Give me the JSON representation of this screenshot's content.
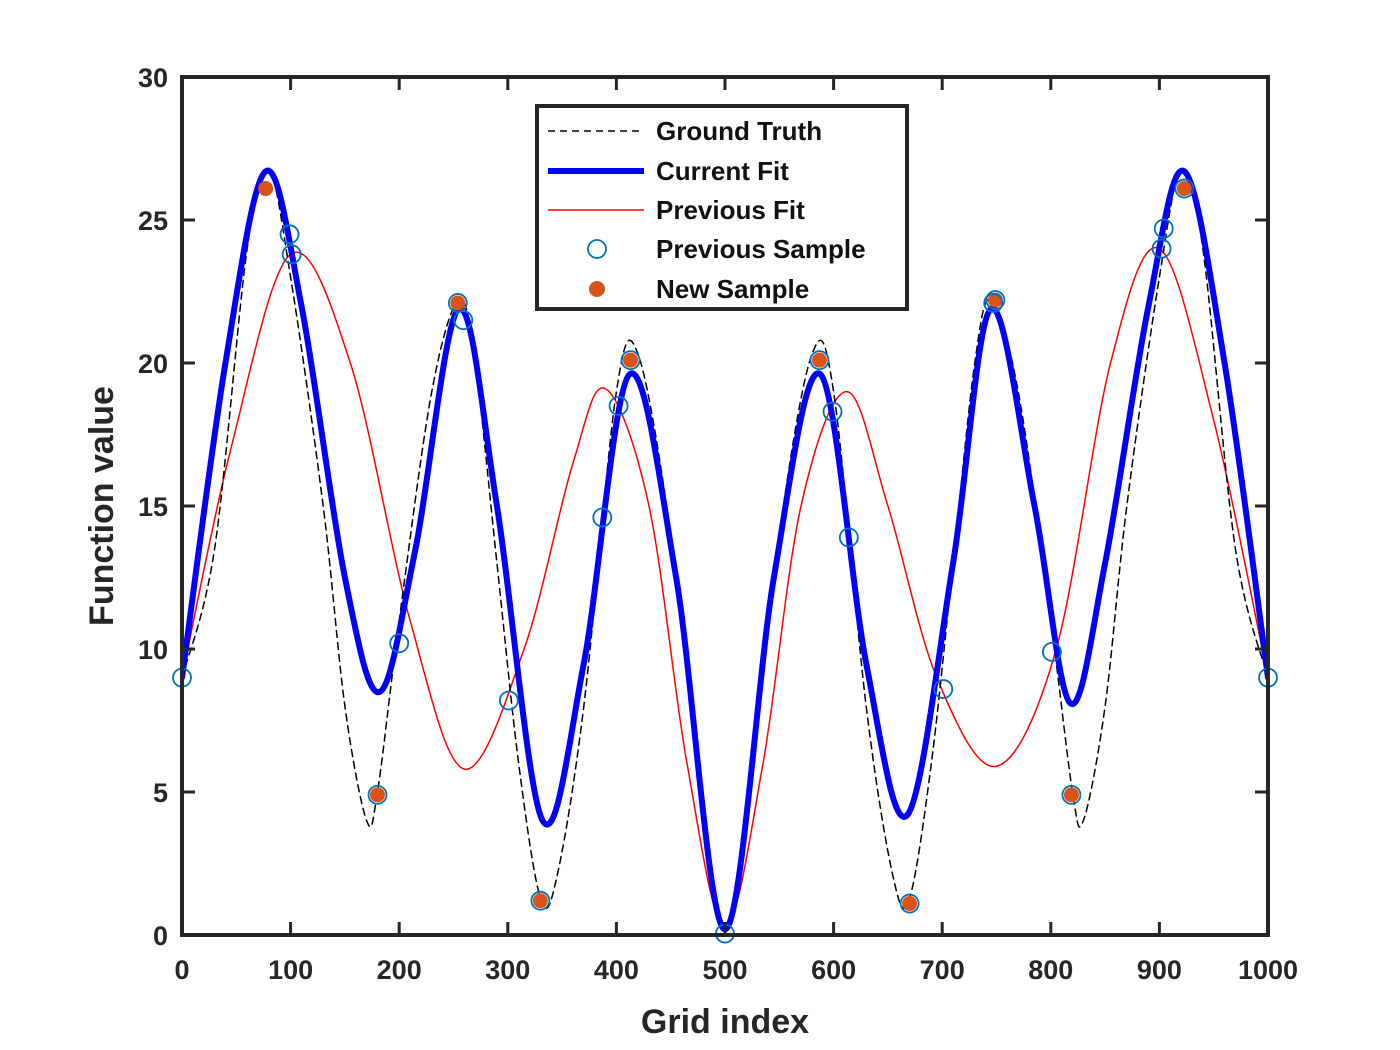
{
  "chart_data": {
    "type": "line",
    "title": "",
    "xlabel": "Grid index",
    "ylabel": "Function value",
    "xlim": [
      0,
      1000
    ],
    "ylim": [
      0,
      30
    ],
    "xticks": [
      0,
      100,
      200,
      300,
      400,
      500,
      600,
      700,
      800,
      900,
      1000
    ],
    "yticks": [
      0,
      5,
      10,
      15,
      20,
      25,
      30
    ],
    "xtick_labels": [
      "0",
      "100",
      "200",
      "300",
      "400",
      "500",
      "600",
      "700",
      "800",
      "900",
      "1000"
    ],
    "ytick_labels": [
      "0",
      "5",
      "10",
      "15",
      "20",
      "25",
      "30"
    ],
    "grid": false,
    "legend_position": "top-center",
    "series": [
      {
        "name": "Ground Truth",
        "style": "dashed",
        "color": "#000000",
        "x": [
          0,
          30,
          60,
          80,
          100,
          130,
          150,
          170,
          180,
          200,
          230,
          255,
          270,
          290,
          310,
          330,
          345,
          370,
          400,
          420,
          450,
          480,
          500,
          520,
          550,
          580,
          600,
          630,
          655,
          670,
          690,
          710,
          730,
          745,
          770,
          800,
          820,
          830,
          850,
          870,
          900,
          920,
          940,
          970,
          1000
        ],
        "y": [
          9,
          13.5,
          24,
          26.7,
          23,
          15,
          8,
          4,
          5,
          11,
          19,
          22.2,
          20,
          13,
          6,
          1.3,
          2,
          8,
          19,
          20.3,
          14,
          4,
          0.2,
          4,
          14,
          20.3,
          19,
          8,
          2,
          1.3,
          6,
          13,
          20,
          22.2,
          19,
          11,
          5,
          4,
          8,
          15,
          23,
          26.7,
          24,
          13.5,
          9
        ]
      },
      {
        "name": "Current Fit",
        "style": "solid-thick",
        "color": "#0000ff",
        "x": [
          0,
          40,
          77,
          110,
          150,
          182,
          215,
          255,
          290,
          332,
          370,
          412,
          455,
          500,
          545,
          588,
          630,
          668,
          710,
          745,
          785,
          818,
          850,
          890,
          923,
          960,
          1000
        ],
        "y": [
          9,
          20,
          26.7,
          22,
          12.5,
          8.5,
          13.5,
          21.9,
          15,
          4,
          9.5,
          19.6,
          12.5,
          0.2,
          12.5,
          19.6,
          9.5,
          4.2,
          13,
          21.9,
          15,
          8.1,
          13,
          22,
          26.7,
          20,
          9
        ]
      },
      {
        "name": "Previous Fit",
        "style": "solid-thin",
        "color": "#ff0000",
        "x": [
          0,
          45,
          100,
          155,
          210,
          260,
          315,
          360,
          390,
          430,
          465,
          500,
          535,
          570,
          612,
          650,
          695,
          750,
          805,
          855,
          900,
          950,
          1000
        ],
        "y": [
          9,
          17,
          23.8,
          20,
          11,
          5.8,
          10,
          16.5,
          19.1,
          15,
          6,
          0.3,
          6,
          15,
          19,
          15,
          9,
          5.9,
          10,
          20,
          24,
          18,
          9
        ]
      }
    ],
    "scatter_series": [
      {
        "name": "Previous Sample",
        "marker": "open-circle",
        "color": "#0072bd",
        "points": [
          [
            0,
            9
          ],
          [
            99,
            24.5
          ],
          [
            101,
            23.8
          ],
          [
            180,
            4.9
          ],
          [
            200,
            10.2
          ],
          [
            254,
            22.1
          ],
          [
            259,
            21.5
          ],
          [
            301,
            8.2
          ],
          [
            330,
            1.2
          ],
          [
            387,
            14.6
          ],
          [
            402,
            18.5
          ],
          [
            413,
            20.1
          ],
          [
            500,
            0.05
          ],
          [
            587,
            20.1
          ],
          [
            599,
            18.3
          ],
          [
            614,
            13.9
          ],
          [
            670,
            1.1
          ],
          [
            701,
            8.6
          ],
          [
            747,
            22.1
          ],
          [
            749,
            22.2
          ],
          [
            801,
            9.9
          ],
          [
            819,
            4.9
          ],
          [
            902,
            24
          ],
          [
            904,
            24.7
          ],
          [
            923,
            26.1
          ],
          [
            1000,
            9
          ]
        ]
      },
      {
        "name": "New Sample",
        "marker": "filled-circle",
        "color": "#d95319",
        "points": [
          [
            77,
            26.1
          ],
          [
            180,
            4.9
          ],
          [
            254,
            22.1
          ],
          [
            330,
            1.2
          ],
          [
            413,
            20.1
          ],
          [
            587,
            20.1
          ],
          [
            670,
            1.1
          ],
          [
            749,
            22.2
          ],
          [
            819,
            4.9
          ],
          [
            923,
            26.1
          ]
        ]
      }
    ]
  }
}
